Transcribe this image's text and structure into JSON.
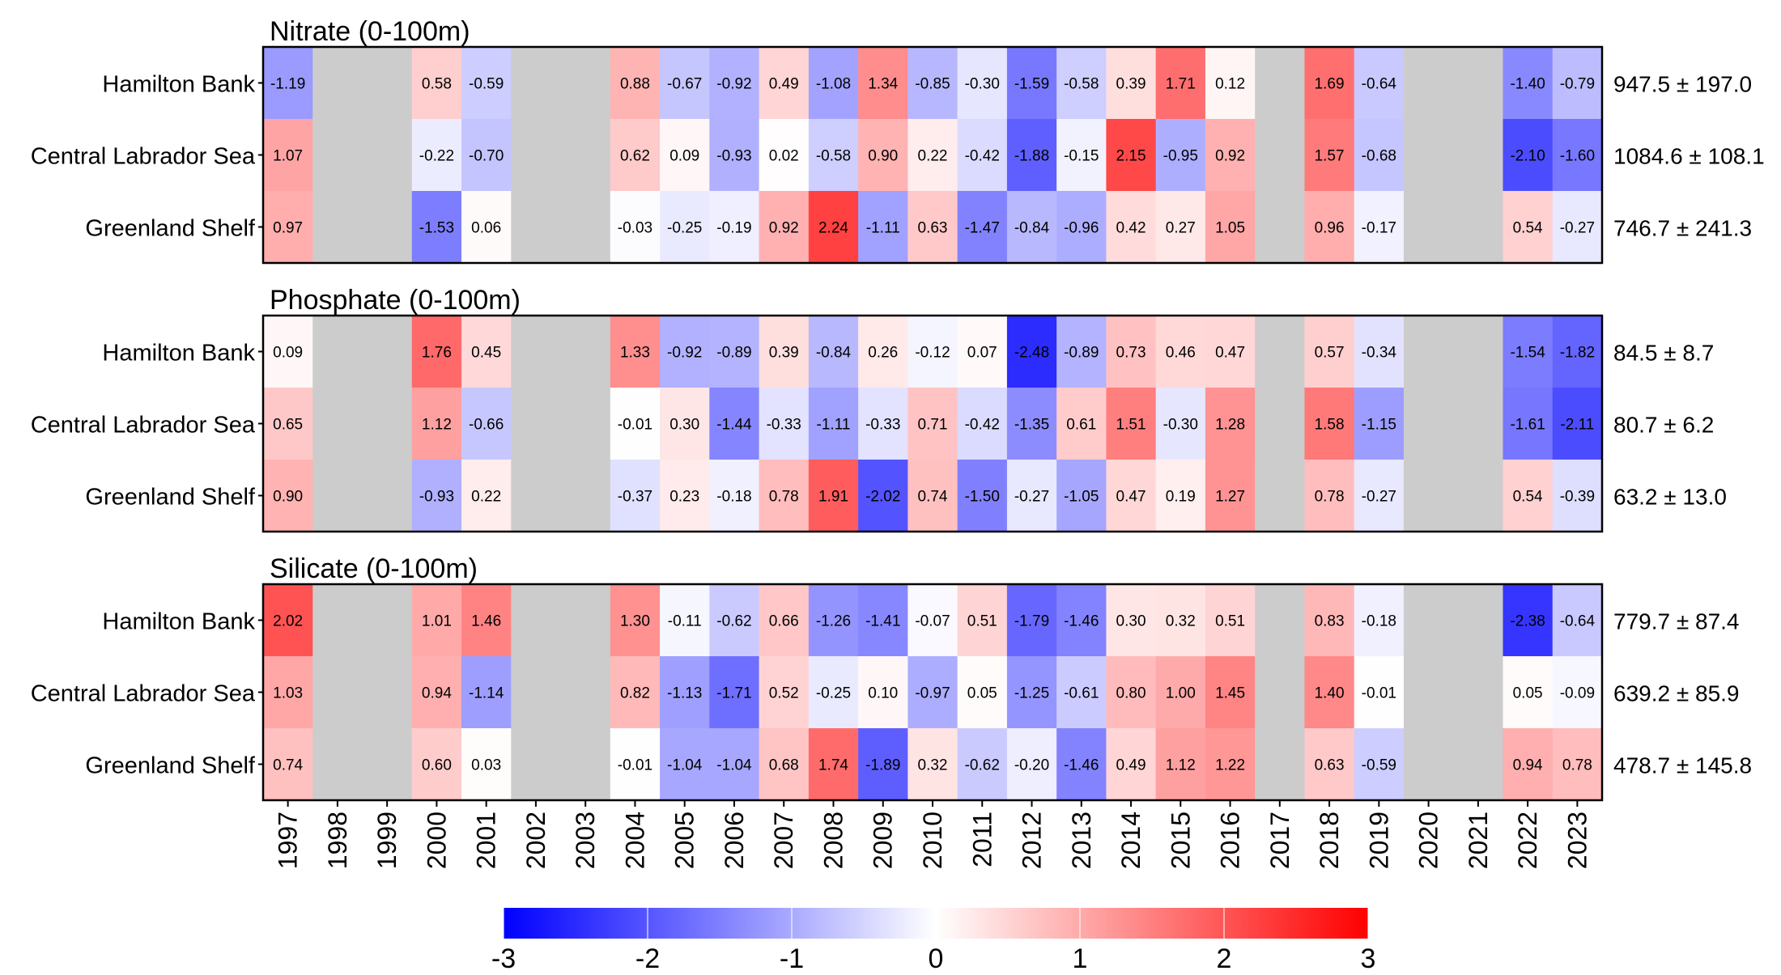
{
  "chart_data": {
    "type": "heatmap",
    "years": [
      "1997",
      "1998",
      "1999",
      "2000",
      "2001",
      "2002",
      "2003",
      "2004",
      "2005",
      "2006",
      "2007",
      "2008",
      "2009",
      "2010",
      "2011",
      "2012",
      "2013",
      "2014",
      "2015",
      "2016",
      "2017",
      "2018",
      "2019",
      "2020",
      "2021",
      "2022",
      "2023"
    ],
    "rows": [
      "Hamilton Bank",
      "Central Labrador Sea",
      "Greenland Shelf"
    ],
    "panels": [
      {
        "title": "Nitrate (0-100m)",
        "stats": [
          "947.5 ± 197.0",
          "1084.6 ± 108.1",
          "746.7 ± 241.3"
        ],
        "values": [
          [
            -1.19,
            null,
            null,
            0.58,
            -0.59,
            null,
            null,
            0.88,
            -0.67,
            -0.92,
            0.49,
            -1.08,
            1.34,
            -0.85,
            -0.3,
            -1.59,
            -0.58,
            0.39,
            1.71,
            0.12,
            null,
            1.69,
            -0.64,
            null,
            null,
            -1.4,
            -0.79
          ],
          [
            1.07,
            null,
            null,
            -0.22,
            -0.7,
            null,
            null,
            0.62,
            0.09,
            -0.93,
            0.02,
            -0.58,
            0.9,
            0.22,
            -0.42,
            -1.88,
            -0.15,
            2.15,
            -0.95,
            0.92,
            null,
            1.57,
            -0.68,
            null,
            null,
            -2.1,
            -1.6
          ],
          [
            0.97,
            null,
            null,
            -1.53,
            0.06,
            null,
            null,
            -0.03,
            -0.25,
            -0.19,
            0.92,
            2.24,
            -1.11,
            0.63,
            -1.47,
            -0.84,
            -0.96,
            0.42,
            0.27,
            1.05,
            null,
            0.96,
            -0.17,
            null,
            null,
            0.54,
            -0.27
          ]
        ]
      },
      {
        "title": "Phosphate (0-100m)",
        "stats": [
          "84.5 ± 8.7",
          "80.7 ± 6.2",
          "63.2 ± 13.0"
        ],
        "values": [
          [
            0.09,
            null,
            null,
            1.76,
            0.45,
            null,
            null,
            1.33,
            -0.92,
            -0.89,
            0.39,
            -0.84,
            0.26,
            -0.12,
            0.07,
            -2.48,
            -0.89,
            0.73,
            0.46,
            0.47,
            null,
            0.57,
            -0.34,
            null,
            null,
            -1.54,
            -1.82
          ],
          [
            0.65,
            null,
            null,
            1.12,
            -0.66,
            null,
            null,
            -0.01,
            0.3,
            -1.44,
            -0.33,
            -1.11,
            -0.33,
            0.71,
            -0.42,
            -1.35,
            0.61,
            1.51,
            -0.3,
            1.28,
            null,
            1.58,
            -1.15,
            null,
            null,
            -1.61,
            -2.11
          ],
          [
            0.9,
            null,
            null,
            -0.93,
            0.22,
            null,
            null,
            -0.37,
            0.23,
            -0.18,
            0.78,
            1.91,
            -2.02,
            0.74,
            -1.5,
            -0.27,
            -1.05,
            0.47,
            0.19,
            1.27,
            null,
            0.78,
            -0.27,
            null,
            null,
            0.54,
            -0.39
          ]
        ]
      },
      {
        "title": "Silicate (0-100m)",
        "stats": [
          "779.7 ± 87.4",
          "639.2 ± 85.9",
          "478.7 ± 145.8"
        ],
        "values": [
          [
            2.02,
            null,
            null,
            1.01,
            1.46,
            null,
            null,
            1.3,
            -0.11,
            -0.62,
            0.66,
            -1.26,
            -1.41,
            -0.07,
            0.51,
            -1.79,
            -1.46,
            0.3,
            0.32,
            0.51,
            null,
            0.83,
            -0.18,
            null,
            null,
            -2.38,
            -0.64
          ],
          [
            1.03,
            null,
            null,
            0.94,
            -1.14,
            null,
            null,
            0.82,
            -1.13,
            -1.71,
            0.52,
            -0.25,
            0.1,
            -0.97,
            0.05,
            -1.25,
            -0.61,
            0.8,
            1.0,
            1.45,
            null,
            1.4,
            -0.01,
            null,
            null,
            0.05,
            -0.09
          ],
          [
            0.74,
            null,
            null,
            0.6,
            0.03,
            null,
            null,
            -0.01,
            -1.04,
            -1.04,
            0.68,
            1.74,
            -1.89,
            0.32,
            -0.62,
            -0.2,
            -1.46,
            0.49,
            1.12,
            1.22,
            null,
            0.63,
            -0.59,
            null,
            null,
            0.94,
            0.78
          ]
        ]
      }
    ],
    "colorbar": {
      "min": -3,
      "max": 3,
      "ticks": [
        "-3",
        "-2",
        "-1",
        "0",
        "1",
        "2",
        "3"
      ],
      "low_color": "#0000ff",
      "mid_color": "#ffffff",
      "high_color": "#ff0000"
    },
    "missing_color": "#cccccc"
  }
}
